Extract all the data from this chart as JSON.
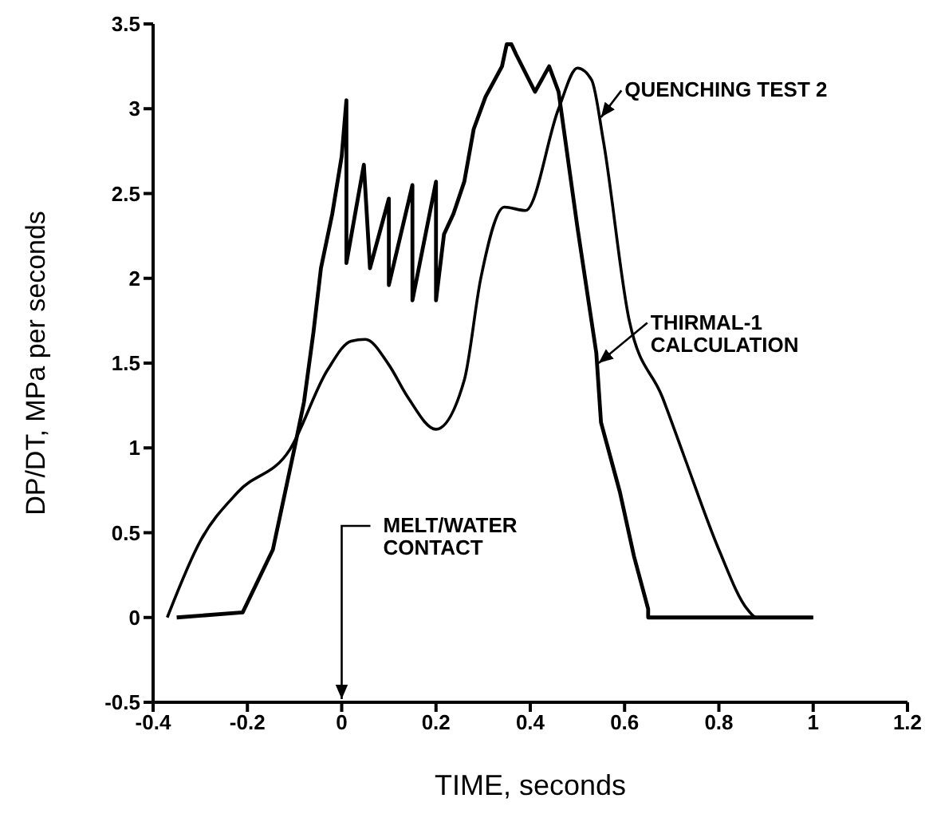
{
  "chart_data": {
    "type": "line",
    "xlabel": "TIME, seconds",
    "ylabel": "DP/DT, MPa per seconds",
    "xlim": [
      -0.4,
      1.2
    ],
    "xticks": [
      -0.4,
      -0.2,
      0,
      0.2,
      0.4,
      0.6,
      0.8,
      1,
      1.2
    ],
    "ylim": [
      -0.5,
      3.5
    ],
    "yticks": [
      -0.5,
      0,
      0.5,
      1,
      1.5,
      2,
      2.5,
      3,
      3.5
    ],
    "marker": "none",
    "legend": "top right",
    "annotations": [
      "MELT/WATER\nCONTACT"
    ],
    "series": [
      {
        "name": "QUENCHING TEST 2",
        "color": "#000000",
        "x": [
          -0.37,
          -0.3,
          -0.22,
          -0.11,
          -0.03,
          0.02,
          0.05,
          0.1,
          0.14,
          0.2,
          0.26,
          0.295,
          0.345,
          0.39,
          0.46,
          0.5,
          0.53,
          0.555,
          0.61,
          0.68,
          0.725,
          0.8,
          0.86,
          0.88,
          1.0
        ],
        "values": [
          0,
          0.45,
          0.74,
          0.99,
          1.46,
          1.63,
          1.64,
          1.49,
          1.3,
          1.11,
          1.4,
          2.0,
          2.42,
          2.4,
          3.0,
          3.24,
          3.17,
          2.81,
          1.75,
          1.3,
          0.96,
          0.4,
          0.05,
          0,
          0
        ]
      },
      {
        "name": "THIRMAL-1\nCALCULATION",
        "color": "#000000",
        "x": [
          -0.35,
          -0.21,
          -0.146,
          -0.1,
          -0.08,
          -0.06,
          -0.044,
          -0.02,
          0,
          0.01,
          0.01,
          0.047,
          0.06,
          0.1,
          0.1,
          0.15,
          0.15,
          0.2,
          0.2,
          0.217,
          0.237,
          0.26,
          0.28,
          0.305,
          0.34,
          0.35,
          0.36,
          0.37,
          0.41,
          0.44,
          0.46,
          0.5,
          0.54,
          0.55,
          0.59,
          0.62,
          0.65,
          0.65,
          1.0
        ],
        "values": [
          0,
          0.03,
          0.4,
          1.0,
          1.27,
          1.68,
          2.06,
          2.38,
          2.72,
          3.05,
          2.09,
          2.67,
          2.06,
          2.47,
          1.96,
          2.55,
          1.87,
          2.57,
          1.87,
          2.26,
          2.38,
          2.57,
          2.88,
          3.07,
          3.25,
          3.38,
          3.38,
          3.32,
          3.1,
          3.25,
          3.1,
          2.3,
          1.56,
          1.15,
          0.74,
          0.36,
          0.05,
          0,
          0
        ]
      }
    ]
  }
}
